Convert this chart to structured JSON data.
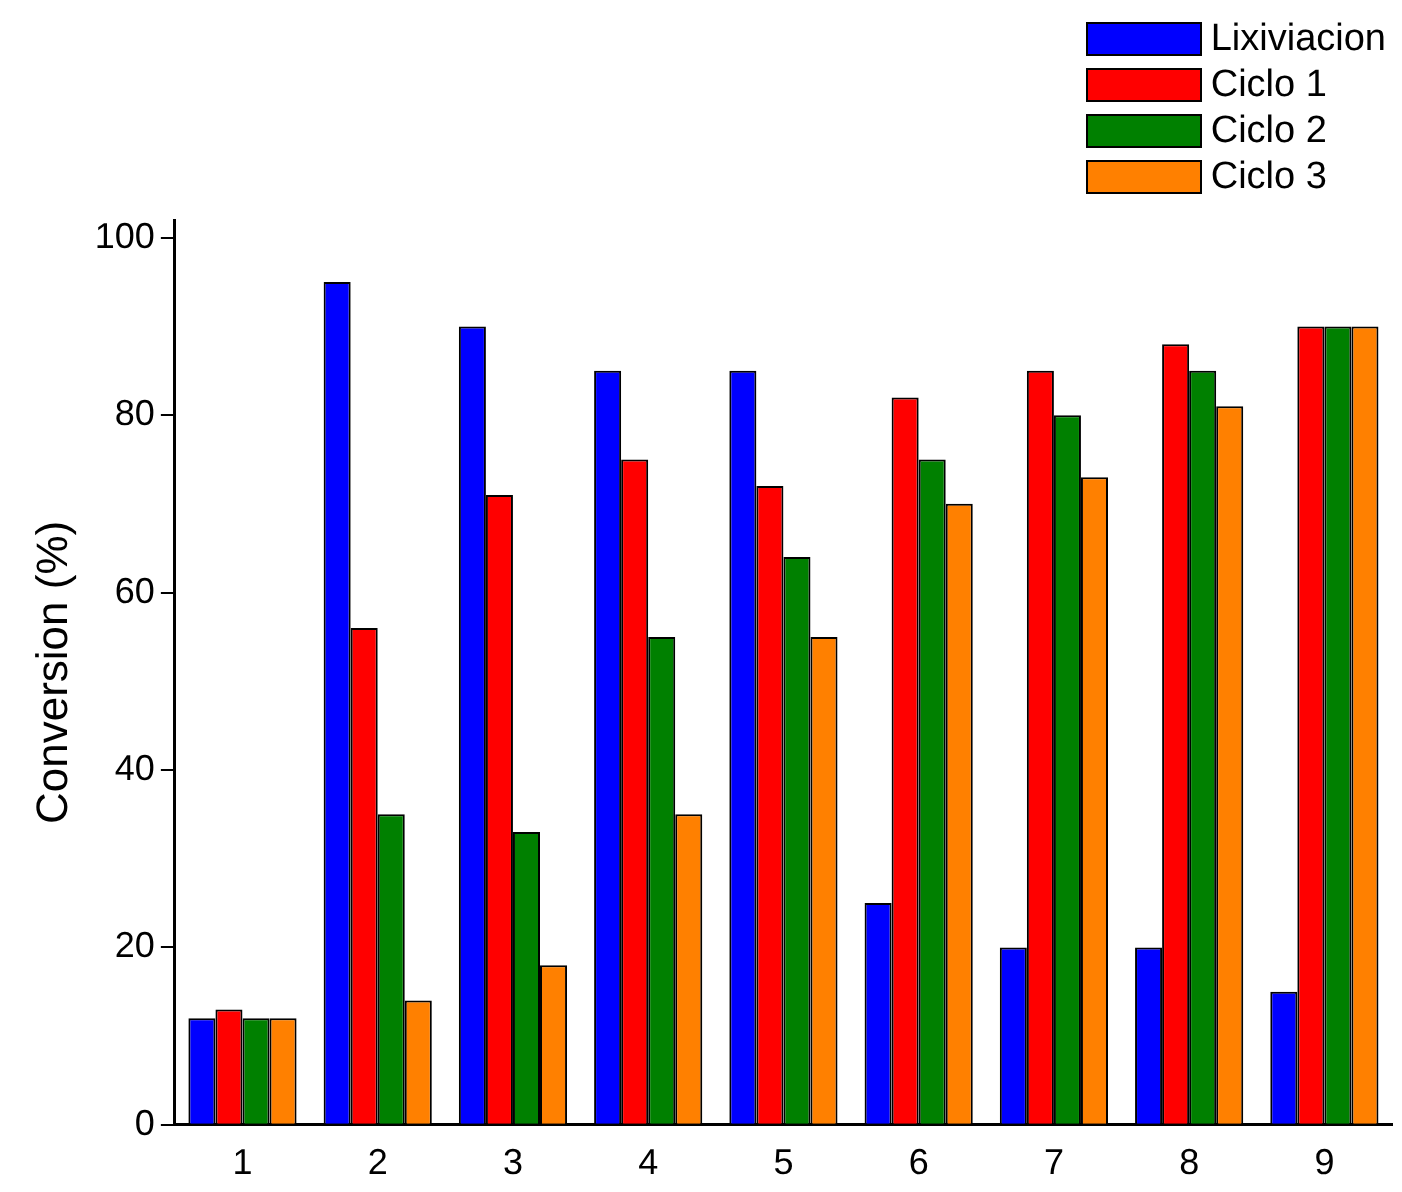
{
  "chart_data": {
    "type": "bar",
    "ylabel": "Conversion (%)",
    "categories": [
      "1",
      "2",
      "3",
      "4",
      "5",
      "6",
      "7",
      "8",
      "9"
    ],
    "series": [
      {
        "name": "Lixiviacion",
        "color": "#0000ff",
        "values": [
          12,
          95,
          90,
          85,
          85,
          25,
          20,
          20,
          15
        ]
      },
      {
        "name": "Ciclo 1",
        "color": "#ff0000",
        "values": [
          13,
          56,
          71,
          75,
          72,
          82,
          85,
          88,
          90
        ]
      },
      {
        "name": "Ciclo 2",
        "color": "#008000",
        "values": [
          12,
          35,
          33,
          55,
          64,
          75,
          80,
          85,
          90
        ]
      },
      {
        "name": "Ciclo 3",
        "color": "#ff8000",
        "values": [
          12,
          14,
          18,
          35,
          55,
          70,
          73,
          81,
          90
        ]
      }
    ],
    "ylim": [
      0,
      102
    ],
    "yticks": [
      0,
      20,
      40,
      60,
      80,
      100
    ],
    "grid": false,
    "legend": "top right"
  }
}
